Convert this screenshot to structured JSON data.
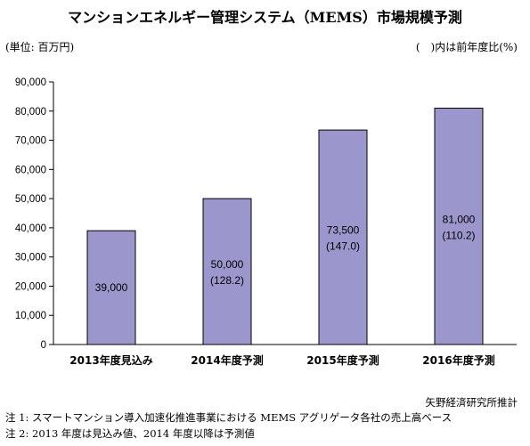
{
  "title": "マンションエネルギー管理システム（MEMS）市場規模予測",
  "unit_label": "(単位: 百万円)",
  "ratio_label": "(　)内は前年度比(%)",
  "source": "矢野経済研究所推計",
  "footnotes": [
    "注 1:  スマートマンション導入加速化推進事業における MEMS アグリゲータ各社の売上高ベース",
    "注 2: 2013 年度は見込み値、2014 年度以降は予測値"
  ],
  "colors": {
    "bar": "#9b97cc",
    "bar_stroke": "#000000",
    "axis": "#000000"
  },
  "chart_data": {
    "type": "bar",
    "categories": [
      "2013年度見込み",
      "2014年度予測",
      "2015年度予測",
      "2016年度予測"
    ],
    "values": [
      39000,
      50000,
      73500,
      81000
    ],
    "yoy": [
      null,
      "128.2",
      "147.0",
      "110.2"
    ],
    "data_labels": [
      "39,000",
      "50,000",
      "73,500",
      "81,000"
    ],
    "yticks": [
      "0",
      "10,000",
      "20,000",
      "30,000",
      "40,000",
      "50,000",
      "60,000",
      "70,000",
      "80,000",
      "90,000"
    ],
    "ylim": [
      0,
      90000
    ],
    "grid": false
  }
}
